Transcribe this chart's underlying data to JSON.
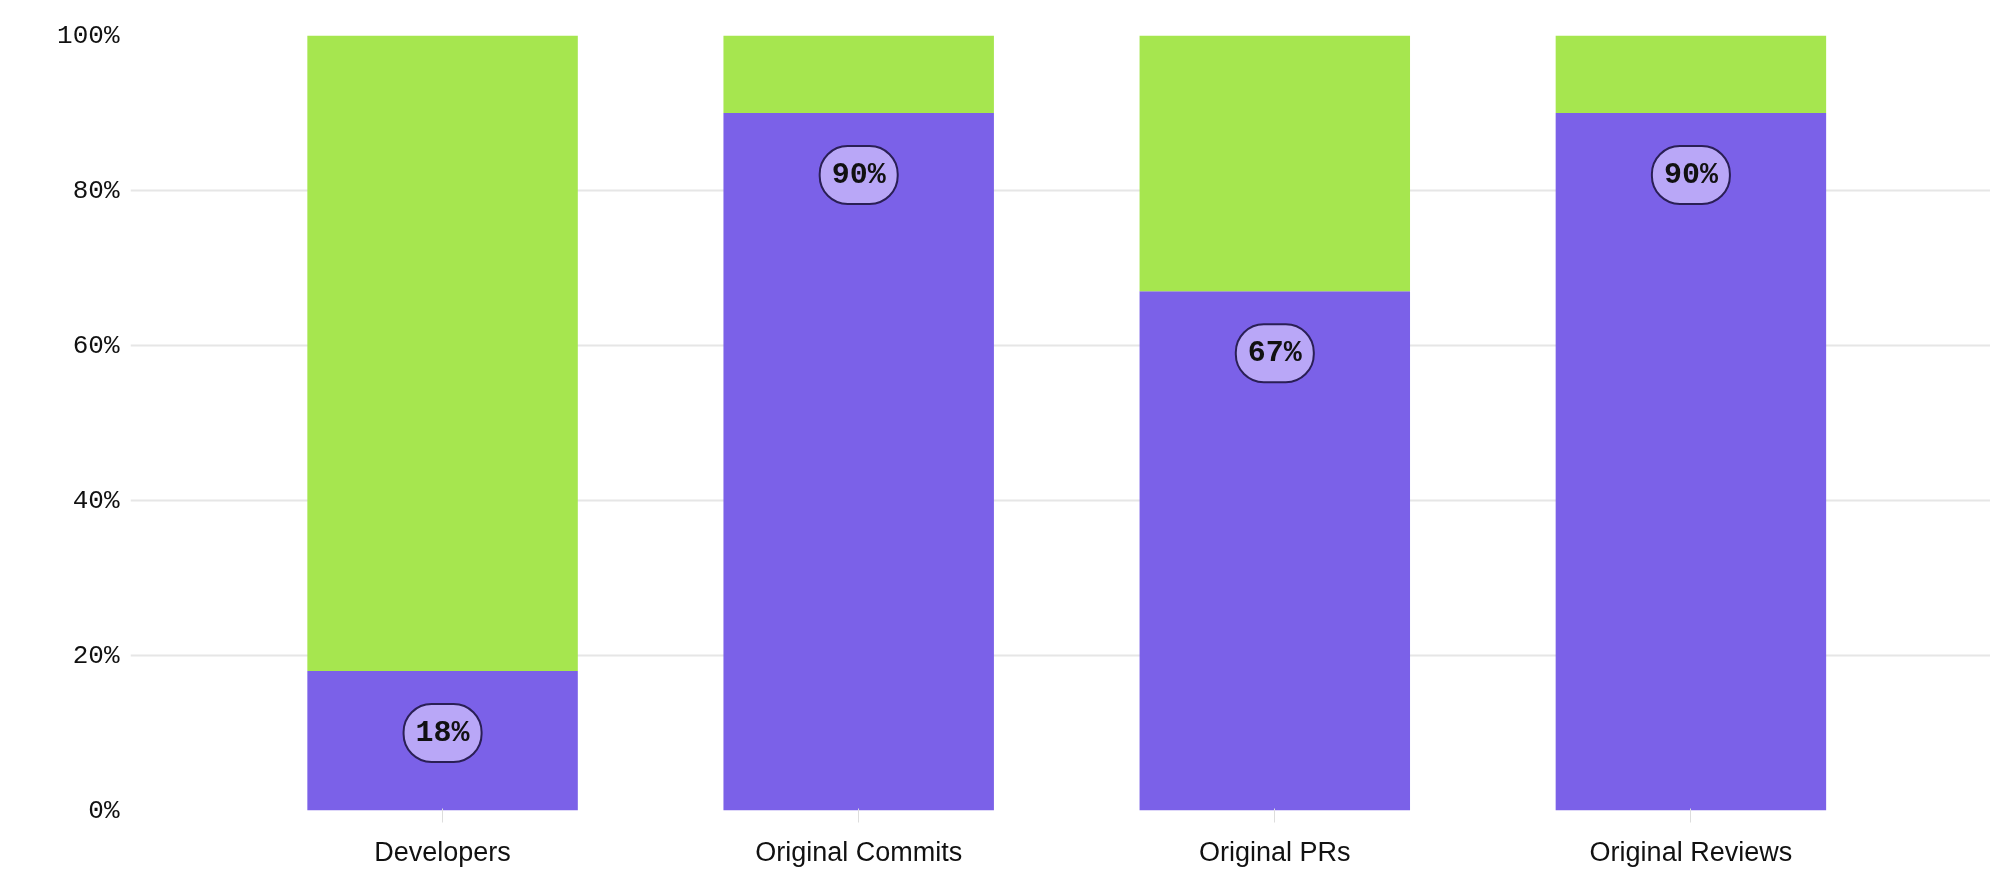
{
  "chart_data": {
    "type": "bar",
    "stacked": true,
    "categories": [
      "Developers",
      "Original Commits",
      "Original PRs",
      "Original Reviews"
    ],
    "series": [
      {
        "color": "#7b61e8",
        "values": [
          18,
          90,
          67,
          90
        ],
        "value_labels": [
          "18%",
          "90%",
          "67%",
          "90%"
        ]
      },
      {
        "color": "#a6e64f",
        "values": [
          82,
          10,
          33,
          10
        ]
      }
    ],
    "ylim": [
      0,
      100
    ],
    "yticks": [
      {
        "value": 0,
        "label": "0%"
      },
      {
        "value": 20,
        "label": "20%"
      },
      {
        "value": 40,
        "label": "40%"
      },
      {
        "value": 60,
        "label": "60%"
      },
      {
        "value": 80,
        "label": "80%"
      },
      {
        "value": 100,
        "label": "100%"
      }
    ],
    "grid": "y"
  }
}
